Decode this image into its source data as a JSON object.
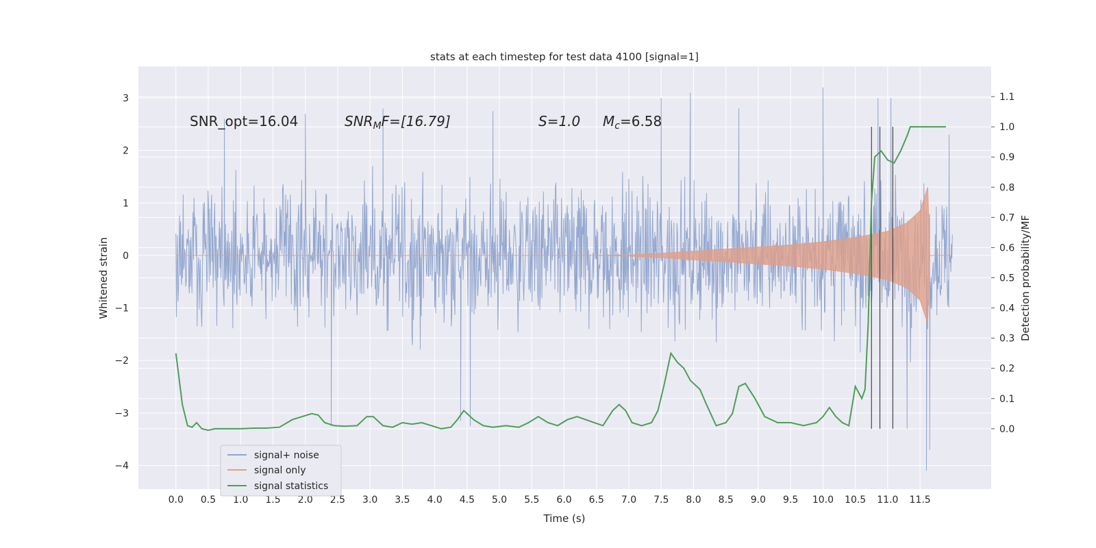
{
  "chart_data": {
    "type": "line",
    "title": "stats at each timestep for test data 4100 [signal=1]",
    "xlabel": "Time (s)",
    "ylabel_left": "Whitened strain",
    "ylabel_right": "Detection probability/MF",
    "xlim": [
      -0.58,
      12.6
    ],
    "ylim_left": [
      -4.45,
      3.6
    ],
    "ylim_right": [
      -0.2,
      1.2
    ],
    "grid": true,
    "legend_position": "lower-left",
    "x_ticks": [
      "0.0",
      "0.5",
      "1.0",
      "1.5",
      "2.0",
      "2.5",
      "3.0",
      "3.5",
      "4.0",
      "4.5",
      "5.0",
      "5.5",
      "6.0",
      "6.5",
      "7.0",
      "7.5",
      "8.0",
      "8.5",
      "9.0",
      "9.5",
      "10.0",
      "10.5",
      "11.0",
      "11.5"
    ],
    "y_ticks_left": [
      "3",
      "2",
      "1",
      "0",
      "−1",
      "−2",
      "−3",
      "−4"
    ],
    "y_ticks_right": [
      "1.1",
      "1.0",
      "0.9",
      "0.8",
      "0.7",
      "0.6",
      "0.5",
      "0.4",
      "0.3",
      "0.2",
      "0.1",
      "0.0"
    ],
    "annotations": {
      "snr_opt": "SNR_opt=16.04",
      "snr_mf_base": "SNR",
      "snr_mf_sub": "M",
      "snr_mf_rest": "F=[16.79]",
      "s_value": "S=1.0",
      "mc_base": "M",
      "mc_sub": "c",
      "mc_rest": "=6.58"
    },
    "annotation_position_y": 2.5,
    "noise": {
      "name": "signal+ noise",
      "color": "#8ea3cc",
      "t_start": 0.0,
      "t_end": 12.0,
      "typical_amplitude": 1.5,
      "peak_points": [
        [
          0.75,
          2.6
        ],
        [
          2.0,
          2.7
        ],
        [
          3.2,
          2.8
        ],
        [
          4.9,
          2.75
        ],
        [
          7.5,
          3.0
        ],
        [
          7.95,
          3.1
        ],
        [
          8.7,
          2.8
        ],
        [
          10.0,
          3.2
        ],
        [
          10.85,
          3.0
        ],
        [
          11.05,
          3.0
        ],
        [
          11.95,
          2.3
        ]
      ],
      "trough_points": [
        [
          2.4,
          -3.25
        ],
        [
          4.4,
          -3.15
        ],
        [
          4.55,
          -3.25
        ],
        [
          11.3,
          -3.3
        ],
        [
          11.6,
          -4.1
        ],
        [
          11.65,
          -3.7
        ]
      ]
    },
    "signal_only": {
      "name": "signal only",
      "color": "#e09f88",
      "envelope": [
        [
          0.0,
          0.0
        ],
        [
          6.5,
          0.0
        ],
        [
          7.0,
          0.01
        ],
        [
          7.5,
          0.04
        ],
        [
          8.0,
          0.08
        ],
        [
          8.5,
          0.12
        ],
        [
          9.0,
          0.16
        ],
        [
          9.5,
          0.2
        ],
        [
          10.0,
          0.26
        ],
        [
          10.5,
          0.34
        ],
        [
          11.0,
          0.46
        ],
        [
          11.3,
          0.62
        ],
        [
          11.5,
          0.85
        ],
        [
          11.62,
          1.3
        ],
        [
          11.65,
          0.0
        ],
        [
          12.0,
          0.0
        ]
      ]
    },
    "statistics": {
      "name": "signal statistics",
      "color": "#4c9e57",
      "x": [
        0.0,
        0.1,
        0.18,
        0.25,
        0.32,
        0.4,
        0.5,
        0.6,
        0.8,
        1.0,
        1.2,
        1.4,
        1.6,
        1.8,
        1.95,
        2.1,
        2.2,
        2.3,
        2.45,
        2.6,
        2.8,
        2.95,
        3.05,
        3.2,
        3.35,
        3.5,
        3.65,
        3.8,
        3.95,
        4.1,
        4.25,
        4.35,
        4.45,
        4.6,
        4.75,
        4.9,
        5.1,
        5.3,
        5.45,
        5.6,
        5.75,
        5.9,
        6.05,
        6.2,
        6.4,
        6.6,
        6.75,
        6.85,
        6.95,
        7.05,
        7.2,
        7.35,
        7.45,
        7.55,
        7.65,
        7.75,
        7.85,
        7.95,
        8.1,
        8.2,
        8.35,
        8.5,
        8.6,
        8.7,
        8.8,
        8.95,
        9.1,
        9.3,
        9.5,
        9.7,
        9.9,
        10.0,
        10.1,
        10.2,
        10.3,
        10.4,
        10.5,
        10.55,
        10.6,
        10.65,
        10.7,
        10.75,
        10.8,
        10.9,
        11.0,
        11.1,
        11.2,
        11.3,
        11.35,
        11.5,
        11.7,
        11.9
      ],
      "y": [
        0.25,
        0.08,
        0.01,
        0.005,
        0.02,
        0.0,
        -0.005,
        0.0,
        0.0,
        0.0,
        0.002,
        0.002,
        0.005,
        0.03,
        0.04,
        0.05,
        0.045,
        0.02,
        0.01,
        0.008,
        0.01,
        0.04,
        0.04,
        0.01,
        0.005,
        0.02,
        0.015,
        0.02,
        0.01,
        0.0,
        0.005,
        0.03,
        0.06,
        0.03,
        0.01,
        0.005,
        0.01,
        0.005,
        0.02,
        0.04,
        0.02,
        0.01,
        0.03,
        0.04,
        0.025,
        0.01,
        0.06,
        0.08,
        0.06,
        0.02,
        0.01,
        0.02,
        0.06,
        0.15,
        0.25,
        0.22,
        0.2,
        0.16,
        0.13,
        0.08,
        0.01,
        0.02,
        0.05,
        0.14,
        0.15,
        0.1,
        0.04,
        0.02,
        0.02,
        0.01,
        0.02,
        0.04,
        0.07,
        0.04,
        0.02,
        0.01,
        0.14,
        0.12,
        0.1,
        0.13,
        0.35,
        0.75,
        0.9,
        0.92,
        0.89,
        0.88,
        0.92,
        0.97,
        1.0,
        1.0,
        1.0,
        1.0
      ]
    },
    "vertical_lines": [
      10.75,
      10.88,
      11.08
    ],
    "vertical_line_range": [
      0.0,
      1.0
    ]
  }
}
